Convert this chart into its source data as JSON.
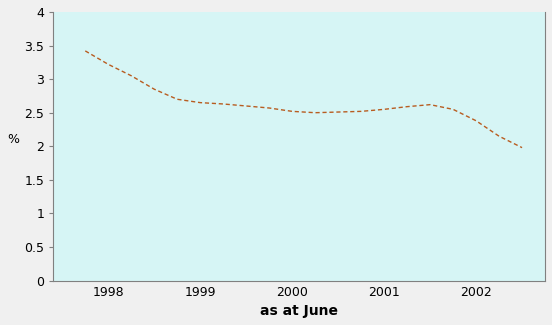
{
  "x": [
    1997.75,
    1998.0,
    1998.25,
    1998.5,
    1998.75,
    1999.0,
    1999.25,
    1999.5,
    1999.75,
    2000.0,
    2000.25,
    2000.5,
    2000.75,
    2001.0,
    2001.25,
    2001.5,
    2001.75,
    2002.0,
    2002.25,
    2002.5
  ],
  "y": [
    3.42,
    3.22,
    3.05,
    2.85,
    2.7,
    2.65,
    2.63,
    2.6,
    2.57,
    2.52,
    2.5,
    2.51,
    2.52,
    2.55,
    2.59,
    2.62,
    2.55,
    2.38,
    2.15,
    1.98
  ],
  "line_color": "#b85c20",
  "plot_bg_color": "#d6f5f5",
  "fig_bg_color": "#f0f0f0",
  "spine_color": "#808080",
  "xlabel": "as at June",
  "ylabel": "%",
  "xlim": [
    1997.4,
    2002.75
  ],
  "ylim": [
    0,
    4
  ],
  "xticks": [
    1998,
    1999,
    2000,
    2001,
    2002
  ],
  "ytick_values": [
    0,
    0.5,
    1.0,
    1.5,
    2.0,
    2.5,
    3.0,
    3.5,
    4.0
  ],
  "ytick_labels": [
    "0",
    "0.5",
    "1",
    "1.5",
    "2",
    "2.5",
    "3",
    "3.5",
    "4"
  ],
  "xlabel_fontsize": 10,
  "ylabel_fontsize": 9,
  "tick_fontsize": 9,
  "xlabel_fontweight": "bold"
}
